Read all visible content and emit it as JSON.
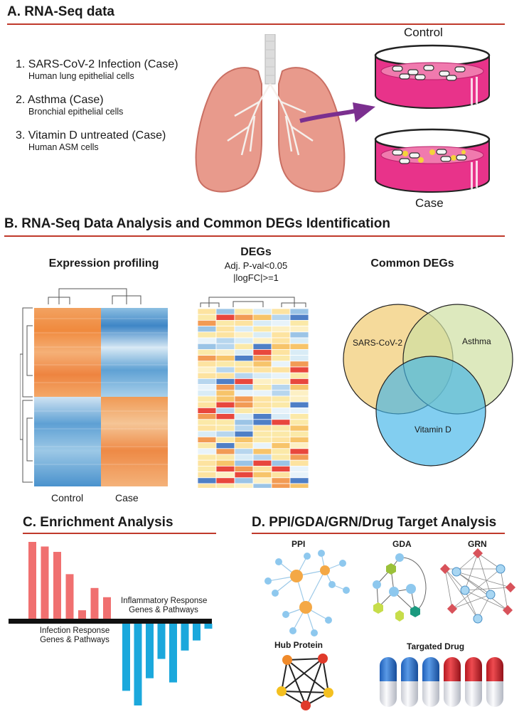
{
  "section_a": {
    "title": "A. RNA-Seq data",
    "items": [
      {
        "label": "1. SARS-CoV-2 Infection (Case)",
        "sub": "Human lung epithelial cells"
      },
      {
        "label": "2. Asthma (Case)",
        "sub": "Bronchial epithelial cells"
      },
      {
        "label": "3. Vitamin D untreated (Case)",
        "sub": "Human ASM cells"
      }
    ],
    "dish_control_label": "Control",
    "dish_case_label": "Case"
  },
  "section_b": {
    "title": "B. RNA-Seq Data Analysis and Common DEGs Identification",
    "expression_title": "Expression profiling",
    "control_label": "Control",
    "case_label": "Case",
    "degs_title": "DEGs",
    "degs_line1": "Adj. P-val<0.05",
    "degs_line2": "|logFC|>=1",
    "common_title": "Common DEGs",
    "venn": {
      "sars": "SARS-CoV-2",
      "asthma": "Asthma",
      "vitd": "Vitamin D"
    }
  },
  "section_c": {
    "title": "C. Enrichment Analysis",
    "up_label_1": "Inflammatory Response",
    "up_label_2": "Genes & Pathways",
    "down_label_1": "Infection Response",
    "down_label_2": "Genes & Pathways",
    "bars_up": [
      1.0,
      0.94,
      0.87,
      0.58,
      0.11,
      0.4,
      0.28
    ],
    "bars_down": [
      0.8,
      1.0,
      0.65,
      0.42,
      0.7,
      0.32,
      0.2,
      0.06
    ]
  },
  "section_d": {
    "title": "D. PPI/GDA/GRN/Drug Target Analysis",
    "ppi": "PPI",
    "gda": "GDA",
    "grn": "GRN",
    "hub": "Hub Protein",
    "drug": "Targated Drug"
  },
  "colors": {
    "rule": "#c0392b",
    "bar_up": "#f07070",
    "bar_down": "#1ba8dc",
    "venn_sars": "#f3d48a",
    "venn_asthma": "#cfe0a3",
    "venn_vitd": "#3fb4e8",
    "dish_liquid": "#e8338a"
  }
}
